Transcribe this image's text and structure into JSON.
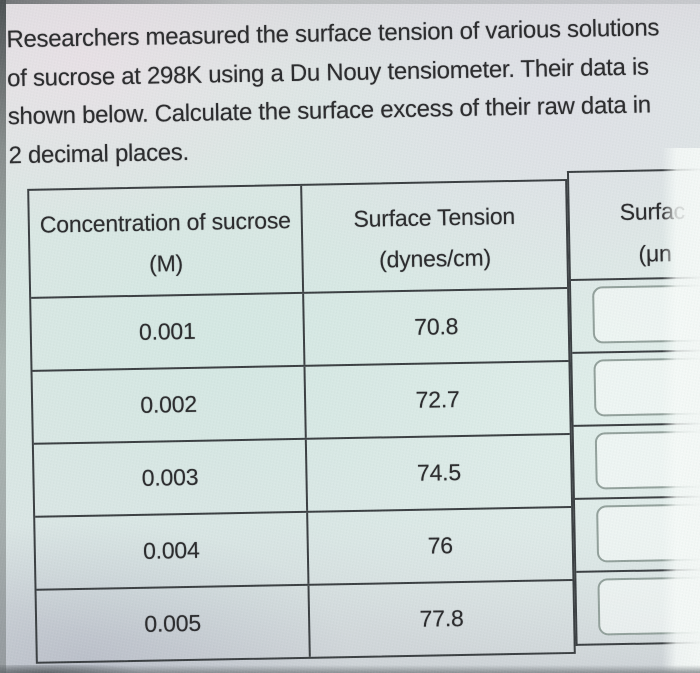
{
  "problem": {
    "lines": [
      "Researchers measured the surface tension of various solutions",
      "of sucrose at 298K using a Du Nouy tensiometer. Their data is",
      "shown below. Calculate the surface excess of their raw data in",
      "2 decimal places."
    ]
  },
  "table": {
    "header": {
      "col1_title": "Concentration of sucrose",
      "col1_unit": "(M)",
      "col2_title": "Surface Tension",
      "col2_unit": "(dynes/cm)",
      "col3_title": "Surfac",
      "col3_unit": "(μn"
    },
    "rows": [
      {
        "concentration": "0.001",
        "surface_tension": "70.8",
        "surface_excess": ""
      },
      {
        "concentration": "0.002",
        "surface_tension": "72.7",
        "surface_excess": ""
      },
      {
        "concentration": "0.003",
        "surface_tension": "74.5",
        "surface_excess": ""
      },
      {
        "concentration": "0.004",
        "surface_tension": "76",
        "surface_excess": ""
      },
      {
        "concentration": "0.005",
        "surface_tension": "77.8",
        "surface_excess": ""
      }
    ]
  },
  "colors": {
    "table_border": "#393d40",
    "input_border": "#92a09b",
    "text": "#29292b",
    "background": "#dde8e5"
  }
}
